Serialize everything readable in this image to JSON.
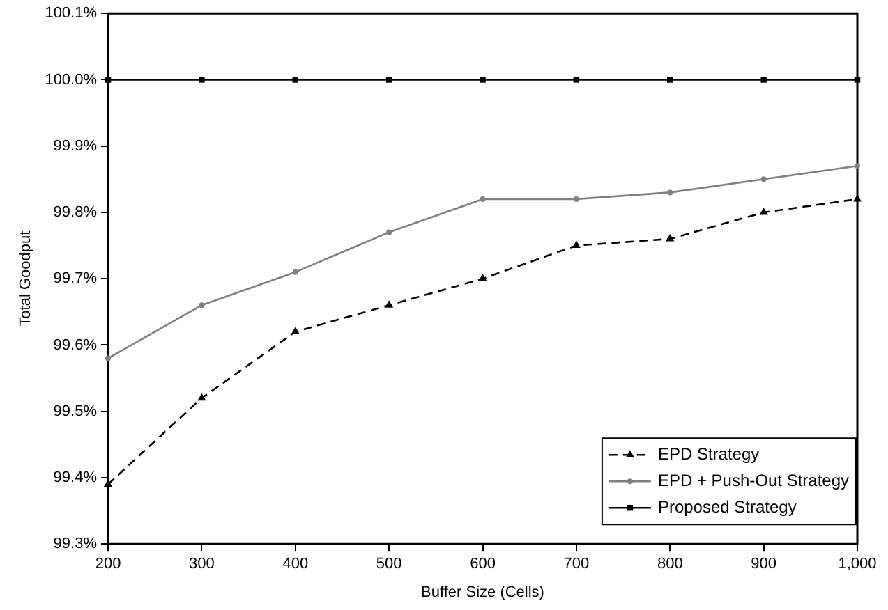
{
  "chart_data": {
    "type": "line",
    "xlabel": "Buffer Size (Cells)",
    "ylabel": "Total Goodput",
    "x": [
      200,
      300,
      400,
      500,
      600,
      700,
      800,
      900,
      1000
    ],
    "series": [
      {
        "name": "EPD Strategy",
        "color": "#000000",
        "marker": "triangle",
        "line_style": "dashed",
        "values": [
          99.39,
          99.52,
          99.62,
          99.66,
          99.7,
          99.75,
          99.76,
          99.8,
          99.82
        ]
      },
      {
        "name": "EPD + Push-Out Strategy",
        "color": "#808080",
        "marker": "circle",
        "line_style": "solid",
        "values": [
          99.58,
          99.66,
          99.71,
          99.77,
          99.82,
          99.82,
          99.83,
          99.85,
          99.87
        ]
      },
      {
        "name": "Proposed Strategy",
        "color": "#000000",
        "marker": "square",
        "line_style": "solid",
        "values": [
          100.0,
          100.0,
          100.0,
          100.0,
          100.0,
          100.0,
          100.0,
          100.0,
          100.0
        ]
      }
    ],
    "xlim": [
      200,
      1000
    ],
    "xticks": [
      200,
      300,
      400,
      500,
      600,
      700,
      800,
      900,
      {
        "value": 1000,
        "label": "1,000"
      }
    ],
    "ylim": [
      99.3,
      100.1
    ],
    "yticks": [
      {
        "value": 99.3,
        "label": "99.3%"
      },
      {
        "value": 99.4,
        "label": "99.4%"
      },
      {
        "value": 99.5,
        "label": "99.5%"
      },
      {
        "value": 99.6,
        "label": "99.6%"
      },
      {
        "value": 99.7,
        "label": "99.7%"
      },
      {
        "value": 99.8,
        "label": "99.8%"
      },
      {
        "value": 99.9,
        "label": "99.9%"
      },
      {
        "value": 100.0,
        "label": "100.0%"
      },
      {
        "value": 100.1,
        "label": "100.1%"
      }
    ],
    "grid": false,
    "legend": "bottom right"
  }
}
